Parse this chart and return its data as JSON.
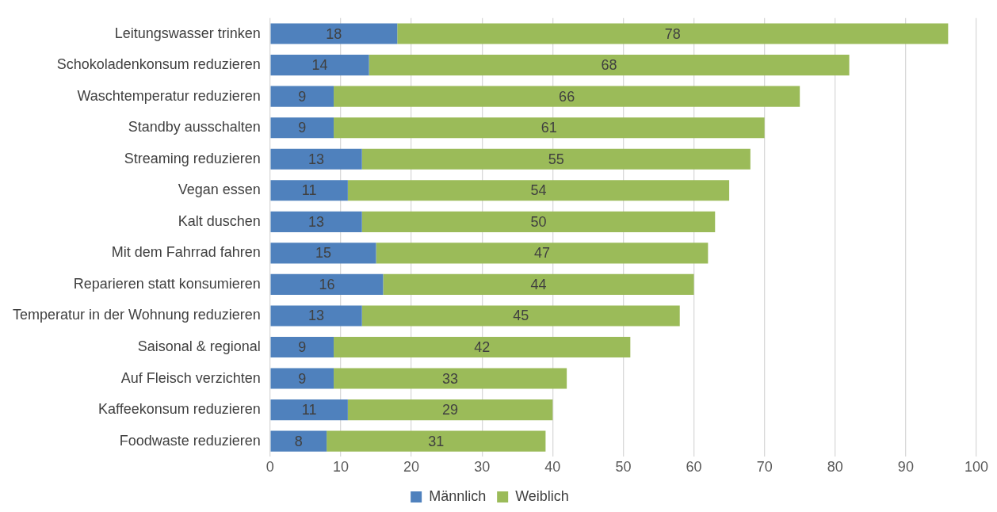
{
  "chart_data": {
    "type": "bar",
    "orientation": "horizontal",
    "stacked": true,
    "categories": [
      "Leitungswasser trinken",
      "Schokoladenkonsum reduzieren",
      "Waschtemperatur reduzieren",
      "Standby ausschalten",
      "Streaming reduzieren",
      "Vegan essen",
      "Kalt duschen",
      "Mit dem Fahrrad fahren",
      "Reparieren statt konsumieren",
      "Temperatur in der Wohnung reduzieren",
      "Saisonal & regional",
      "Auf Fleisch verzichten",
      "Kaffeekonsum reduzieren",
      "Foodwaste reduzieren"
    ],
    "series": [
      {
        "name": "Männlich",
        "color": "#4f81bd",
        "values": [
          18,
          14,
          9,
          9,
          13,
          11,
          13,
          15,
          16,
          13,
          9,
          9,
          11,
          8
        ]
      },
      {
        "name": "Weiblich",
        "color": "#9bbb59",
        "values": [
          78,
          68,
          66,
          61,
          55,
          54,
          50,
          47,
          44,
          45,
          42,
          33,
          29,
          31
        ]
      }
    ],
    "xlim": [
      0,
      100
    ],
    "xticks": [
      0,
      10,
      20,
      30,
      40,
      50,
      60,
      70,
      80,
      90,
      100
    ],
    "grid": "x",
    "legend": "bottom",
    "data_labels": true
  }
}
